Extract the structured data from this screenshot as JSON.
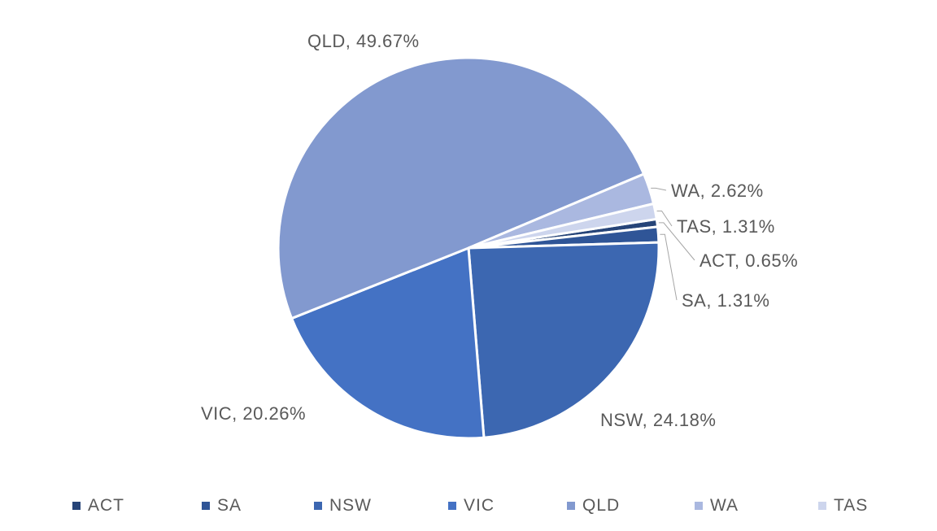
{
  "chart_data": {
    "type": "pie",
    "slices": [
      {
        "name": "ACT",
        "value": 0.65,
        "label": "ACT, 0.65%",
        "color": "#264478"
      },
      {
        "name": "SA",
        "value": 1.31,
        "label": "SA, 1.31%",
        "color": "#2f5597"
      },
      {
        "name": "NSW",
        "value": 24.18,
        "label": "NSW, 24.18%",
        "color": "#3c67b1"
      },
      {
        "name": "VIC",
        "value": 20.26,
        "label": "VIC, 20.26%",
        "color": "#4472c4"
      },
      {
        "name": "QLD",
        "value": 49.67,
        "label": "QLD, 49.67%",
        "color": "#8299cf"
      },
      {
        "name": "WA",
        "value": 2.62,
        "label": "WA, 2.62%",
        "color": "#aab8e0"
      },
      {
        "name": "TAS",
        "value": 1.31,
        "label": "TAS, 1.31%",
        "color": "#cdd5ed"
      }
    ],
    "legend": [
      "ACT",
      "SA",
      "NSW",
      "VIC",
      "QLD",
      "WA",
      "TAS"
    ],
    "legend_position": "bottom"
  }
}
